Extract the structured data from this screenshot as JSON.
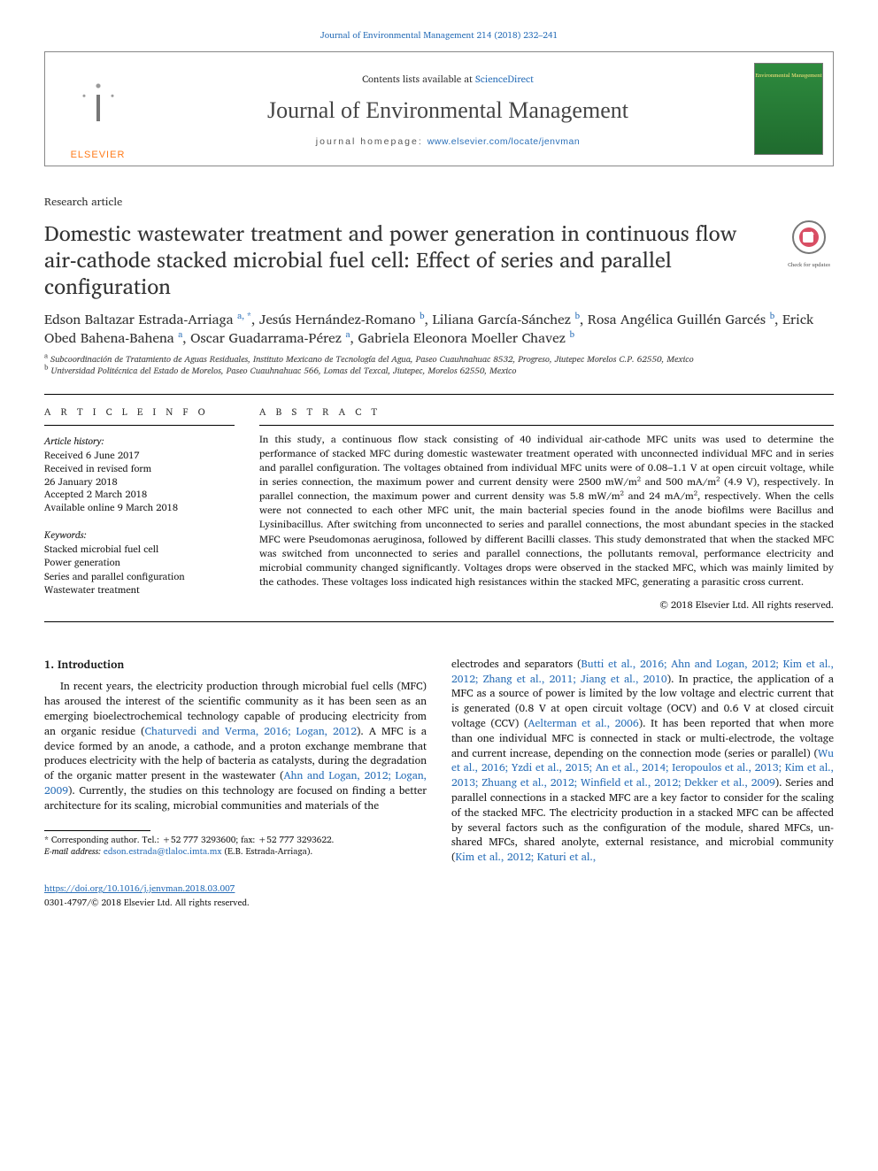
{
  "header": {
    "journal_ref": "Journal of Environmental Management 214 (2018) 232–241",
    "contents_prefix": "Contents lists available at ",
    "contents_link": "ScienceDirect",
    "journal_name": "Journal of Environmental Management",
    "homepage_prefix": "journal homepage: ",
    "homepage_url": "www.elsevier.com/locate/jenvman",
    "publisher_word": "ELSEVIER",
    "cover_small_text": "Environmental\nManagement"
  },
  "article": {
    "type_label": "Research article",
    "title": "Domestic wastewater treatment and power generation in continuous flow air-cathode stacked microbial fuel cell: Effect of series and parallel configuration",
    "updates_badge": "Check for updates",
    "authors_html": "Edson Baltazar Estrada-Arriaga <sup class='aff'>a, *</sup>, Jesús Hernández-Romano <sup class='aff'>b</sup>, Liliana García-Sánchez <sup class='aff'>b</sup>, Rosa Angélica Guillén Garcés <sup class='aff'>b</sup>, Erick Obed Bahena-Bahena <sup class='aff'>a</sup>, Oscar Guadarrama-Pérez <sup class='aff'>a</sup>, Gabriela Eleonora Moeller Chavez <sup class='aff'>b</sup>",
    "affiliations": [
      {
        "key": "a",
        "text": "Subcoordinación de Tratamiento de Aguas Residuales, Instituto Mexicano de Tecnología del Agua, Paseo Cuauhnahuac 8532, Progreso, Jiutepec Morelos C.P. 62550, Mexico"
      },
      {
        "key": "b",
        "text": "Universidad Politécnica del Estado de Morelos, Paseo Cuauhnahuac 566, Lomas del Texcal, Jiutepec, Morelos 62550, Mexico"
      }
    ]
  },
  "info": {
    "heading": "A R T I C L E   I N F O",
    "history_label": "Article history:",
    "history": [
      "Received 6 June 2017",
      "Received in revised form",
      "26 January 2018",
      "Accepted 2 March 2018",
      "Available online 9 March 2018"
    ],
    "keywords_label": "Keywords:",
    "keywords": [
      "Stacked microbial fuel cell",
      "Power generation",
      "Series and parallel configuration",
      "Wastewater treatment"
    ]
  },
  "abstract": {
    "heading": "A B S T R A C T",
    "text": "In this study, a continuous flow stack consisting of 40 individual air-cathode MFC units was used to determine the performance of stacked MFC during domestic wastewater treatment operated with unconnected individual MFC and in series and parallel configuration. The voltages obtained from individual MFC units were of 0.08–1.1 V at open circuit voltage, while in series connection, the maximum power and current density were 2500 mW/m² and 500 mA/m² (4.9 V), respectively. In parallel connection, the maximum power and current density was 5.8 mW/m² and 24 mA/m², respectively. When the cells were not connected to each other MFC unit, the main bacterial species found in the anode biofilms were Bacillus and Lysinibacillus. After switching from unconnected to series and parallel connections, the most abundant species in the stacked MFC were Pseudomonas aeruginosa, followed by different Bacilli classes. This study demonstrated that when the stacked MFC was switched from unconnected to series and parallel connections, the pollutants removal, performance electricity and microbial community changed significantly. Voltages drops were observed in the stacked MFC, which was mainly limited by the cathodes. These voltages loss indicated high resistances within the stacked MFC, generating a parasitic cross current.",
    "copyright": "© 2018 Elsevier Ltd. All rights reserved."
  },
  "body": {
    "heading": "1. Introduction",
    "para1_a": "In recent years, the electricity production through microbial fuel cells (MFC) has aroused the interest of the scientific community as it has been seen as an emerging bioelectrochemical technology capable of producing electricity from an organic residue (",
    "cite1": "Chaturvedi and Verma, 2016; Logan, 2012",
    "para1_b": "). A MFC is a device formed by an anode, a cathode, and a proton exchange membrane that produces electricity with the help of bacteria as catalysts, during the degradation of the organic matter present in the wastewater (",
    "cite2": "Ahn and Logan, 2012; Logan, 2009",
    "para1_c": "). Currently, the studies on this technology are focused on finding a better architecture for its scaling, microbial communities and materials of the",
    "para2_a": "electrodes and separators (",
    "cite3": "Butti et al., 2016; Ahn and Logan, 2012; Kim et al., 2012; Zhang et al., 2011; Jiang et al., 2010",
    "para2_b": "). In practice, the application of a MFC as a source of power is limited by the low voltage and electric current that is generated (0.8 V at open circuit voltage (OCV) and 0.6 V at closed circuit voltage (CCV) (",
    "cite4": "Aelterman et al., 2006",
    "para2_c": "). It has been reported that when more than one individual MFC is connected in stack or multi-electrode, the voltage and current increase, depending on the connection mode (series or parallel) (",
    "cite5": "Wu et al., 2016; Yzdi et al., 2015; An et al., 2014; Ieropoulos et al., 2013; Kim et al., 2013; Zhuang et al., 2012; Winfield et al., 2012; Dekker et al., 2009",
    "para2_d": "). Series and parallel connections in a stacked MFC are a key factor to consider for the scaling of the stacked MFC. The electricity production in a stacked MFC can be affected by several factors such as the configuration of the module, shared MFCs, un-shared MFCs, shared anolyte, external resistance, and microbial community (",
    "cite6": "Kim et al., 2012; Katuri et al.,"
  },
  "footnote": {
    "corresponding": "* Corresponding author. Tel.: +52 777 3293600; fax: +52 777 3293622.",
    "email_label": "E-mail address: ",
    "email": "edson.estrada@tlaloc.imta.mx",
    "email_suffix": " (E.B. Estrada-Arriaga)."
  },
  "footer": {
    "doi": "https://doi.org/10.1016/j.jenvman.2018.03.007",
    "issn_line": "0301-4797/© 2018 Elsevier Ltd. All rights reserved."
  },
  "colors": {
    "link": "#2a6fb8",
    "elsevier_orange": "#ff7b1a",
    "cover_green_top": "#2e8b3e",
    "cover_green_bottom": "#1f6b2e",
    "text": "#1a1a1a"
  }
}
